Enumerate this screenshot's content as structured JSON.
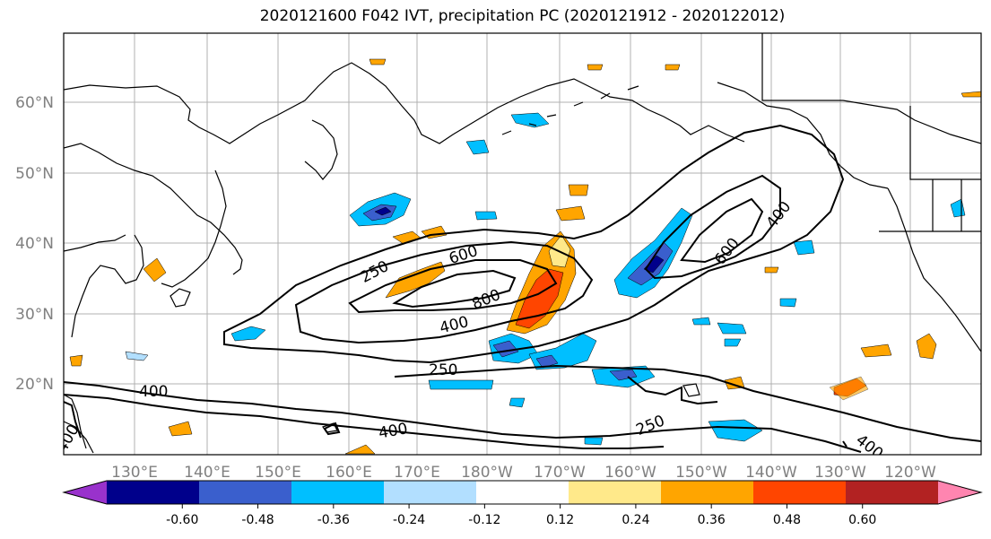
{
  "title": "2020121600 F042 IVT, precipitation PC (2020121912 - 2020122012)",
  "map": {
    "lon_labels": [
      "130°E",
      "140°E",
      "150°E",
      "160°E",
      "170°E",
      "180°W",
      "170°W",
      "160°W",
      "150°W",
      "140°W",
      "130°W",
      "120°W"
    ],
    "lat_labels": [
      "60°N",
      "50°N",
      "40°N",
      "30°N",
      "20°N"
    ],
    "label_color": "#808080",
    "ocean_color": "#ffffff",
    "coast_color": "#000000"
  },
  "ivt_contour_labels": [
    "250",
    "600",
    "800",
    "400",
    "250",
    "400",
    "400",
    "250",
    "400",
    "400",
    "600",
    "400"
  ],
  "colorbar": {
    "colors": [
      "#9932cc",
      "#00008b",
      "#3a5fcd",
      "#00bfff",
      "#b2dfff",
      "#ffffff",
      "#ffe98a",
      "#ffa500",
      "#ff4500",
      "#b22222",
      "#ff85b0"
    ],
    "tick_labels": [
      "-0.60",
      "-0.48",
      "-0.36",
      "-0.24",
      "-0.12",
      "0.12",
      "0.24",
      "0.36",
      "0.48",
      "0.60"
    ]
  }
}
